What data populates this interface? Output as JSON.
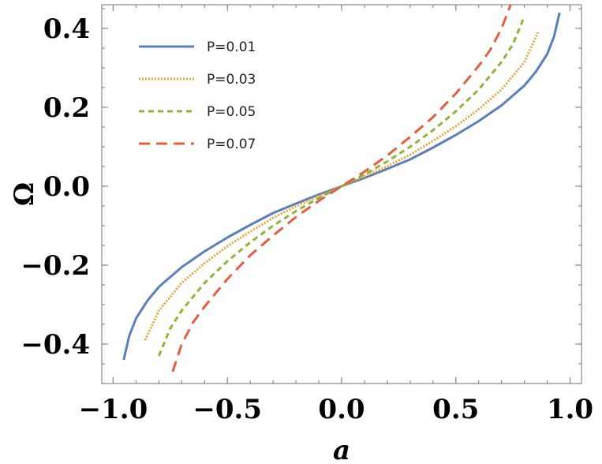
{
  "chart_data": {
    "type": "line",
    "xlabel": "a",
    "ylabel": "Ω",
    "xlim": [
      -1.05,
      1.05
    ],
    "ylim": [
      -0.5,
      0.46
    ],
    "xticks": [
      -1.0,
      -0.5,
      0.0,
      0.5,
      1.0
    ],
    "xtick_labels": [
      "−1.0",
      "−0.5",
      "0.0",
      "0.5",
      "1.0"
    ],
    "yticks": [
      -0.4,
      -0.2,
      0.0,
      0.2,
      0.4
    ],
    "ytick_labels": [
      "−0.4",
      "−0.2",
      "0.0",
      "0.2",
      "0.4"
    ],
    "grid": false,
    "legend_position": "top-left",
    "series": [
      {
        "name": "P=0.01",
        "color": "#5b7fb8",
        "dash": "solid",
        "x": [
          -0.954,
          -0.93,
          -0.9,
          -0.85,
          -0.8,
          -0.7,
          -0.6,
          -0.5,
          -0.4,
          -0.3,
          -0.2,
          -0.1,
          0.0,
          0.1,
          0.2,
          0.3,
          0.4,
          0.5,
          0.6,
          0.7,
          0.8,
          0.85,
          0.9,
          0.93,
          0.954
        ],
        "y": [
          -0.44,
          -0.38,
          -0.335,
          -0.29,
          -0.255,
          -0.205,
          -0.165,
          -0.13,
          -0.098,
          -0.068,
          -0.044,
          -0.021,
          0.0,
          0.021,
          0.044,
          0.068,
          0.098,
          0.13,
          0.165,
          0.205,
          0.255,
          0.29,
          0.335,
          0.38,
          0.44
        ]
      },
      {
        "name": "P=0.03",
        "color": "#e8a23a",
        "dash": "dotted",
        "x": [
          -0.86,
          -0.8,
          -0.7,
          -0.6,
          -0.5,
          -0.4,
          -0.3,
          -0.2,
          -0.1,
          0.0,
          0.1,
          0.2,
          0.3,
          0.4,
          0.5,
          0.6,
          0.7,
          0.8,
          0.86
        ],
        "y": [
          -0.39,
          -0.315,
          -0.245,
          -0.195,
          -0.152,
          -0.115,
          -0.08,
          -0.051,
          -0.025,
          0.0,
          0.025,
          0.051,
          0.08,
          0.115,
          0.152,
          0.195,
          0.245,
          0.315,
          0.39
        ]
      },
      {
        "name": "P=0.05",
        "color": "#8fb43a",
        "dash": "short-dash",
        "x": [
          -0.8,
          -0.75,
          -0.7,
          -0.6,
          -0.5,
          -0.4,
          -0.3,
          -0.2,
          -0.1,
          0.0,
          0.1,
          0.2,
          0.3,
          0.4,
          0.5,
          0.6,
          0.7,
          0.75,
          0.8
        ],
        "y": [
          -0.43,
          -0.36,
          -0.315,
          -0.245,
          -0.19,
          -0.142,
          -0.1,
          -0.063,
          -0.03,
          0.0,
          0.03,
          0.063,
          0.1,
          0.142,
          0.19,
          0.245,
          0.315,
          0.36,
          0.43
        ]
      },
      {
        "name": "P=0.07",
        "color": "#e06040",
        "dash": "long-dash",
        "x": [
          -0.74,
          -0.7,
          -0.65,
          -0.6,
          -0.5,
          -0.4,
          -0.3,
          -0.2,
          -0.1,
          0.0,
          0.1,
          0.2,
          0.3,
          0.4,
          0.5,
          0.6,
          0.65,
          0.7,
          0.74
        ],
        "y": [
          -0.47,
          -0.4,
          -0.345,
          -0.305,
          -0.235,
          -0.175,
          -0.125,
          -0.078,
          -0.037,
          0.0,
          0.037,
          0.078,
          0.125,
          0.175,
          0.235,
          0.305,
          0.345,
          0.4,
          0.46
        ]
      }
    ]
  }
}
